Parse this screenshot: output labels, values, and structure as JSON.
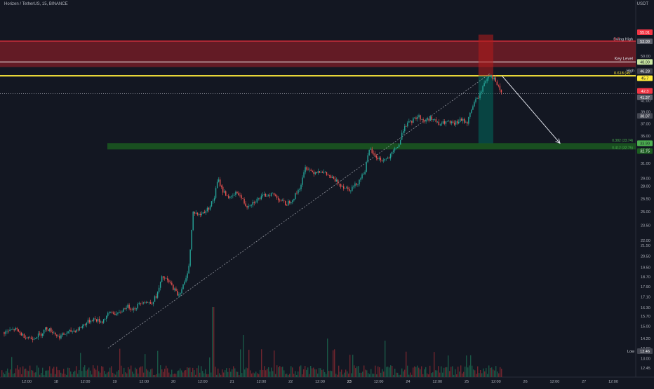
{
  "header": {
    "symbol_title": "Horizen / TetherUS, 15, BINANCE",
    "quote_currency": "USDT"
  },
  "chart_data": {
    "type": "candlestick",
    "title": "Horizen / TetherUS, 15, BINANCE",
    "log_scale": true,
    "grid": false,
    "x_axis_ticks": [
      "12:00",
      "18",
      "12:00",
      "19",
      "12:00",
      "20",
      "12:00",
      "21",
      "12:00",
      "22",
      "12:00",
      "23",
      "12:00",
      "24",
      "12:00",
      "25",
      "12:00",
      "26",
      "12:00",
      "27",
      "12:00"
    ],
    "y_axis_ticks": [
      "50.00",
      "45.00",
      "43.00",
      "41.00",
      "39.00",
      "37.00",
      "35.00",
      "33.00",
      "31.00",
      "29.00",
      "28.00",
      "26.50",
      "25.00",
      "23.50",
      "22.00",
      "21.50",
      "20.50",
      "19.50",
      "18.70",
      "17.90",
      "17.10",
      "16.30",
      "15.70",
      "15.00",
      "14.20",
      "13.60",
      "13.00",
      "12.45"
    ],
    "price_series": [
      {
        "t": 0.0,
        "p": 14.6
      },
      {
        "t": 0.9,
        "p": 14.8
      },
      {
        "t": 1.5,
        "p": 14.4
      },
      {
        "t": 2.2,
        "p": 14.2
      },
      {
        "t": 3.0,
        "p": 14.5
      },
      {
        "t": 3.4,
        "p": 14.9
      },
      {
        "t": 4.0,
        "p": 14.6
      },
      {
        "t": 4.4,
        "p": 14.3
      },
      {
        "t": 5.2,
        "p": 14.6
      },
      {
        "t": 6.0,
        "p": 14.8
      },
      {
        "t": 6.6,
        "p": 15.2
      },
      {
        "t": 7.2,
        "p": 15.5
      },
      {
        "t": 7.9,
        "p": 15.3
      },
      {
        "t": 8.6,
        "p": 16.0
      },
      {
        "t": 9.2,
        "p": 15.8
      },
      {
        "t": 9.9,
        "p": 16.4
      },
      {
        "t": 10.5,
        "p": 16.2
      },
      {
        "t": 11.2,
        "p": 16.8
      },
      {
        "t": 11.9,
        "p": 16.6
      },
      {
        "t": 12.4,
        "p": 17.3
      },
      {
        "t": 12.8,
        "p": 18.7
      },
      {
        "t": 13.4,
        "p": 18.2
      },
      {
        "t": 14.1,
        "p": 17.2
      },
      {
        "t": 14.7,
        "p": 18.4
      },
      {
        "t": 15.0,
        "p": 20.0
      },
      {
        "t": 15.3,
        "p": 25.0
      },
      {
        "t": 15.8,
        "p": 24.6
      },
      {
        "t": 16.5,
        "p": 25.3
      },
      {
        "t": 17.0,
        "p": 26.5
      },
      {
        "t": 17.3,
        "p": 28.9
      },
      {
        "t": 17.7,
        "p": 27.4
      },
      {
        "t": 18.3,
        "p": 26.5
      },
      {
        "t": 18.9,
        "p": 27.3
      },
      {
        "t": 19.6,
        "p": 25.6
      },
      {
        "t": 20.3,
        "p": 26.2
      },
      {
        "t": 21.0,
        "p": 26.8
      },
      {
        "t": 21.7,
        "p": 27.1
      },
      {
        "t": 22.3,
        "p": 26.4
      },
      {
        "t": 22.8,
        "p": 25.8
      },
      {
        "t": 23.4,
        "p": 26.5
      },
      {
        "t": 24.0,
        "p": 28.0
      },
      {
        "t": 24.4,
        "p": 30.5
      },
      {
        "t": 25.0,
        "p": 29.8
      },
      {
        "t": 25.6,
        "p": 30.0
      },
      {
        "t": 26.2,
        "p": 29.4
      },
      {
        "t": 26.8,
        "p": 28.7
      },
      {
        "t": 27.4,
        "p": 28.0
      },
      {
        "t": 28.0,
        "p": 27.6
      },
      {
        "t": 28.6,
        "p": 28.4
      },
      {
        "t": 29.2,
        "p": 30.0
      },
      {
        "t": 29.6,
        "p": 33.1
      },
      {
        "t": 30.0,
        "p": 32.0
      },
      {
        "t": 30.6,
        "p": 31.4
      },
      {
        "t": 31.2,
        "p": 31.8
      },
      {
        "t": 31.6,
        "p": 32.9
      },
      {
        "t": 32.0,
        "p": 33.8
      },
      {
        "t": 32.4,
        "p": 36.7
      },
      {
        "t": 32.9,
        "p": 37.2
      },
      {
        "t": 33.5,
        "p": 38.3
      },
      {
        "t": 34.0,
        "p": 37.4
      },
      {
        "t": 34.6,
        "p": 38.0
      },
      {
        "t": 35.2,
        "p": 36.8
      },
      {
        "t": 35.8,
        "p": 37.3
      },
      {
        "t": 36.4,
        "p": 36.9
      },
      {
        "t": 37.0,
        "p": 37.6
      },
      {
        "t": 37.5,
        "p": 37.2
      },
      {
        "t": 38.0,
        "p": 40.5
      },
      {
        "t": 38.5,
        "p": 42.0
      },
      {
        "t": 38.9,
        "p": 44.5
      },
      {
        "t": 39.3,
        "p": 46.2
      },
      {
        "t": 39.7,
        "p": 45.0
      },
      {
        "t": 40.0,
        "p": 43.5
      },
      {
        "t": 40.3,
        "p": 42.3
      }
    ],
    "zones": [
      {
        "name": "upper-resistance-zone",
        "from": 47.6,
        "to": 53.7,
        "color": "#7f1d27"
      },
      {
        "name": "support-zone",
        "from": 32.98,
        "to": 33.92,
        "color": "#1b5e20"
      }
    ],
    "horizontal_lines": [
      {
        "name": "swing-high-line",
        "price": 53.4,
        "color": "#f23645"
      },
      {
        "name": "key-level-line",
        "price": 48.7,
        "color": "#ffffff"
      },
      {
        "name": "fib-0618-line",
        "price": 45.8,
        "color": "#ffeb3b"
      },
      {
        "name": "current-price-line",
        "price": 42.3,
        "color": "#787b86"
      }
    ],
    "annotations": {
      "swing_high": "Swing High",
      "key_level": "Key Level",
      "fib_0618": "0.618 (45.",
      "fib_0382": "0.382 (33.74)",
      "fib_0412": "0.412 (32.75)",
      "high_label": "High",
      "low_label": "Low",
      "fib_0786_partial": "0.7"
    },
    "price_badges": {
      "swing_high_red": "55.01",
      "swing_high": "53.00",
      "key_level": "48.00",
      "high": "46.28",
      "fib_0618": "45.7",
      "current": "42.3",
      "current_b": "41.37",
      "fib_mid": "38.07",
      "fib_0382": "33.90",
      "fib_0412": "32.75",
      "low": "13.46"
    },
    "projection": {
      "from_t": 40.3,
      "from_p": 45.8,
      "to_t": 45.0,
      "to_p": 33.9
    },
    "short_position": {
      "t_start": 38.4,
      "t_end": 39.6,
      "stop_top": 55.0,
      "entry": 45.8,
      "target": 33.9
    }
  }
}
